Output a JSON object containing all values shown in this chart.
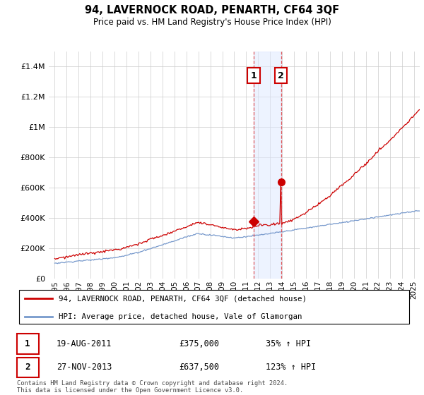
{
  "title": "94, LAVERNOCK ROAD, PENARTH, CF64 3QF",
  "subtitle": "Price paid vs. HM Land Registry's House Price Index (HPI)",
  "ytick_values": [
    0,
    200000,
    400000,
    600000,
    800000,
    1000000,
    1200000,
    1400000
  ],
  "ylim": [
    0,
    1500000
  ],
  "xlim_start": 1994.5,
  "xlim_end": 2025.5,
  "red_color": "#cc0000",
  "blue_color": "#7799cc",
  "marker1_x": 2011.63,
  "marker1_y": 375000,
  "marker2_x": 2013.9,
  "marker2_y": 637500,
  "annotation1": [
    "1",
    "19-AUG-2011",
    "£375,000",
    "35% ↑ HPI"
  ],
  "annotation2": [
    "2",
    "27-NOV-2013",
    "£637,500",
    "123% ↑ HPI"
  ],
  "legend1": "94, LAVERNOCK ROAD, PENARTH, CF64 3QF (detached house)",
  "legend2": "HPI: Average price, detached house, Vale of Glamorgan",
  "footer": "Contains HM Land Registry data © Crown copyright and database right 2024.\nThis data is licensed under the Open Government Licence v3.0.",
  "grid_color": "#cccccc",
  "shade_color": "#dde8ff",
  "shade_alpha": 0.5
}
